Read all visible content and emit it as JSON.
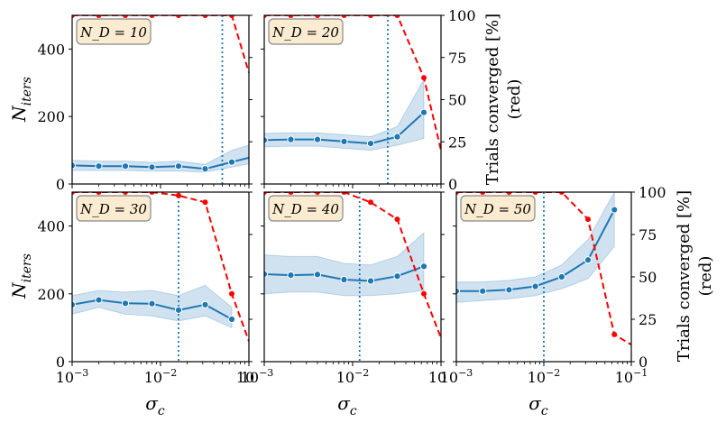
{
  "figure": {
    "ylabel_left": "N_iters",
    "ylabel_right": "Trials converged [%]",
    "ylabel_right_sub": "(red)",
    "xlabel": "σ_c"
  },
  "colors": {
    "blue": "#1f77b4",
    "band": "#bcd6ea",
    "red": "#ff0000",
    "label_bg": "#fbebd0",
    "label_border": "#888888"
  },
  "chart_data": [
    {
      "type": "line",
      "label": "N_D = 10",
      "x_scale": "log",
      "xlim": [
        0.001,
        0.1
      ],
      "ylim": [
        0,
        500
      ],
      "y2lim": [
        0,
        100
      ],
      "vline_x": 0.05,
      "series": [
        {
          "name": "N_iters",
          "color": "#1f77b4",
          "x": [
            0.001,
            0.002,
            0.004,
            0.008,
            0.016,
            0.032,
            0.064,
            0.1
          ],
          "values": [
            55,
            53,
            53,
            50,
            53,
            45,
            65,
            78
          ],
          "band_lower": [
            40,
            40,
            40,
            38,
            38,
            35,
            50,
            60
          ],
          "band_upper": [
            70,
            68,
            68,
            64,
            68,
            58,
            100,
            115
          ]
        },
        {
          "name": "Trials converged (red)",
          "axis": "right",
          "color": "#ff0000",
          "x": [
            0.001,
            0.002,
            0.004,
            0.008,
            0.016,
            0.032,
            0.064,
            0.1
          ],
          "values": [
            100,
            100,
            100,
            100,
            100,
            100,
            100,
            66
          ]
        }
      ]
    },
    {
      "type": "line",
      "label": "N_D = 20",
      "x_scale": "log",
      "xlim": [
        0.001,
        0.1
      ],
      "ylim": [
        0,
        500
      ],
      "y2lim": [
        0,
        100
      ],
      "vline_x": 0.025,
      "series": [
        {
          "name": "N_iters",
          "color": "#1f77b4",
          "x": [
            0.001,
            0.002,
            0.004,
            0.008,
            0.016,
            0.032,
            0.064
          ],
          "values": [
            130,
            132,
            132,
            126,
            120,
            140,
            212
          ],
          "band_lower": [
            110,
            112,
            112,
            106,
            100,
            115,
            135
          ],
          "band_upper": [
            150,
            152,
            152,
            146,
            140,
            170,
            310
          ]
        },
        {
          "name": "Trials converged (red)",
          "axis": "right",
          "color": "#ff0000",
          "x": [
            0.001,
            0.002,
            0.004,
            0.008,
            0.016,
            0.032,
            0.064,
            0.1
          ],
          "values": [
            100,
            100,
            100,
            100,
            100,
            100,
            63,
            20
          ]
        }
      ]
    },
    {
      "type": "line",
      "label": "N_D = 30",
      "x_scale": "log",
      "xlim": [
        0.001,
        0.1
      ],
      "ylim": [
        0,
        500
      ],
      "y2lim": [
        0,
        100
      ],
      "vline_x": 0.016,
      "series": [
        {
          "name": "N_iters",
          "color": "#1f77b4",
          "x": [
            0.001,
            0.002,
            0.004,
            0.008,
            0.016,
            0.032,
            0.064
          ],
          "values": [
            168,
            182,
            172,
            171,
            152,
            168,
            125
          ],
          "band_lower": [
            140,
            160,
            140,
            135,
            120,
            135,
            100
          ],
          "band_upper": [
            195,
            210,
            205,
            210,
            195,
            225,
            160
          ]
        },
        {
          "name": "Trials converged (red)",
          "axis": "right",
          "color": "#ff0000",
          "x": [
            0.001,
            0.002,
            0.004,
            0.008,
            0.016,
            0.032,
            0.064,
            0.1
          ],
          "values": [
            100,
            100,
            100,
            100,
            98,
            94,
            40,
            12
          ]
        }
      ]
    },
    {
      "type": "line",
      "label": "N_D = 40",
      "x_scale": "log",
      "xlim": [
        0.001,
        0.1
      ],
      "ylim": [
        0,
        500
      ],
      "y2lim": [
        0,
        100
      ],
      "vline_x": 0.012,
      "series": [
        {
          "name": "N_iters",
          "color": "#1f77b4",
          "x": [
            0.001,
            0.002,
            0.004,
            0.008,
            0.016,
            0.032,
            0.064
          ],
          "values": [
            258,
            255,
            257,
            242,
            238,
            252,
            281
          ],
          "band_lower": [
            200,
            205,
            205,
            195,
            195,
            200,
            210
          ],
          "band_upper": [
            315,
            310,
            310,
            290,
            285,
            310,
            380
          ]
        },
        {
          "name": "Trials converged (red)",
          "axis": "right",
          "color": "#ff0000",
          "x": [
            0.001,
            0.002,
            0.004,
            0.008,
            0.016,
            0.032,
            0.064,
            0.1
          ],
          "values": [
            100,
            100,
            100,
            100,
            94,
            84,
            40,
            14
          ]
        }
      ]
    },
    {
      "type": "line",
      "label": "N_D = 50",
      "x_scale": "log",
      "xlim": [
        0.001,
        0.1
      ],
      "ylim": [
        0,
        500
      ],
      "y2lim": [
        0,
        100
      ],
      "vline_x": 0.01,
      "series": [
        {
          "name": "N_iters",
          "color": "#1f77b4",
          "x": [
            0.001,
            0.002,
            0.004,
            0.008,
            0.016,
            0.032,
            0.064
          ],
          "values": [
            208,
            208,
            212,
            222,
            250,
            300,
            448
          ],
          "band_lower": [
            175,
            180,
            185,
            195,
            215,
            245,
            340
          ],
          "band_upper": [
            235,
            235,
            240,
            250,
            285,
            360,
            500
          ]
        },
        {
          "name": "Trials converged (red)",
          "axis": "right",
          "color": "#ff0000",
          "x": [
            0.001,
            0.002,
            0.004,
            0.008,
            0.016,
            0.032,
            0.064,
            0.1
          ],
          "values": [
            100,
            100,
            100,
            100,
            100,
            84,
            16,
            10
          ]
        }
      ]
    }
  ],
  "axes": {
    "y_left_ticks": [
      "0",
      "200",
      "400"
    ],
    "y_right_ticks": [
      "0",
      "25",
      "50",
      "75",
      "100"
    ],
    "x_ticks": [
      "10−3",
      "10−2",
      "10−1"
    ],
    "x_ticks_clipped": [
      "10−3",
      "10−2",
      "10",
      "10"
    ]
  }
}
